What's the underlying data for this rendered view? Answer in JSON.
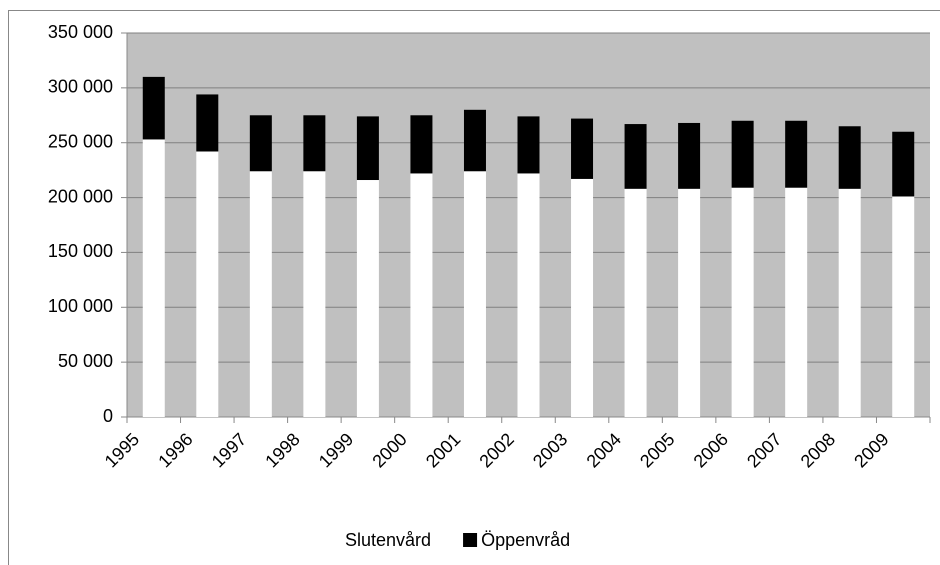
{
  "chart_data": {
    "type": "stacked-bar",
    "categories": [
      "1995",
      "1996",
      "1997",
      "1998",
      "1999",
      "2000",
      "2001",
      "2002",
      "2003",
      "2004",
      "2005",
      "2006",
      "2007",
      "2008",
      "2009"
    ],
    "series": [
      {
        "name": "Slutenvård",
        "color": "#ffffff",
        "values": [
          253000,
          242000,
          224000,
          224000,
          216000,
          222000,
          224000,
          222000,
          217000,
          208000,
          208000,
          209000,
          209000,
          208000,
          201000
        ]
      },
      {
        "name": "Öppenvråd",
        "color": "#000000",
        "values": [
          57000,
          52000,
          51000,
          51000,
          58000,
          53000,
          56000,
          52000,
          55000,
          59000,
          60000,
          61000,
          61000,
          57000,
          59000
        ]
      }
    ],
    "ylim": [
      0,
      350000
    ],
    "yticks": [
      0,
      {
        "value": 50000,
        "label": "50 000"
      },
      {
        "value": 100000,
        "label": "100 000"
      },
      {
        "value": 150000,
        "label": "150 000"
      },
      {
        "value": 200000,
        "label": "200 000"
      },
      {
        "value": 250000,
        "label": "250 000"
      },
      {
        "value": 300000,
        "label": "300 000"
      },
      {
        "value": 350000,
        "label": "350 000"
      }
    ],
    "grid": true,
    "plot_background": "#c0c0c0",
    "legend": "bottom"
  }
}
